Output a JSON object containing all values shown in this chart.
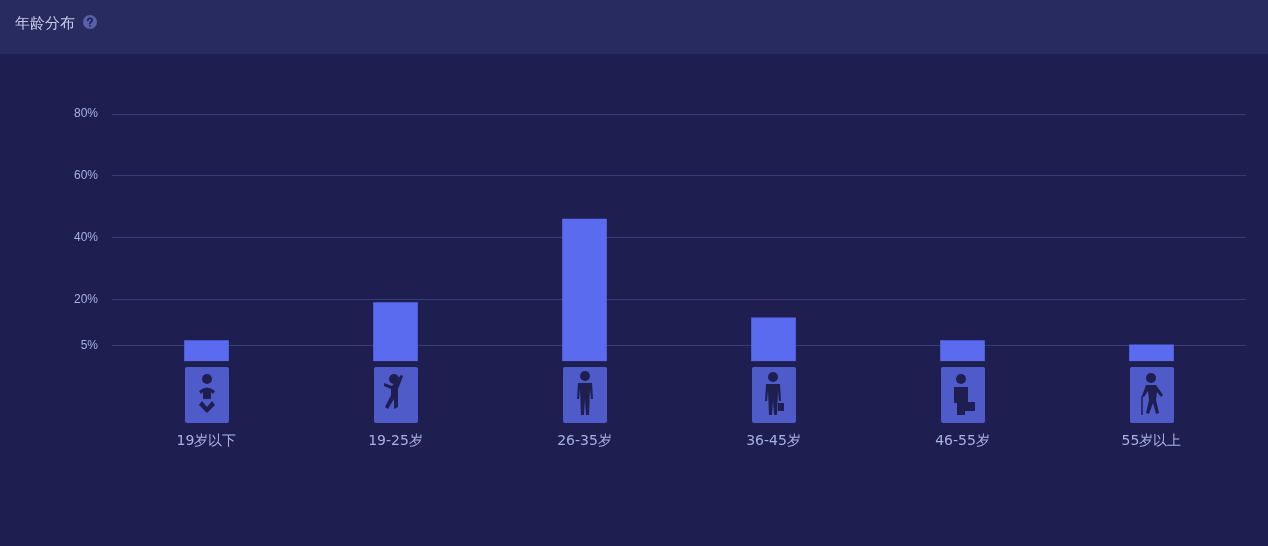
{
  "chart_data": {
    "type": "bar",
    "title": "年龄分布",
    "categories": [
      "19岁以下",
      "19-25岁",
      "26-35岁",
      "36-45岁",
      "46-55岁",
      "55岁以上"
    ],
    "values": [
      6.7,
      19,
      46,
      14,
      6.7,
      5.3
    ],
    "color": "#5b6bef",
    "ylim": [
      0,
      80
    ],
    "yticks": [
      {
        "value": 5,
        "label": "5%"
      },
      {
        "value": 20,
        "label": "20%"
      },
      {
        "value": 40,
        "label": "40%"
      },
      {
        "value": 60,
        "label": "60%"
      },
      {
        "value": 80,
        "label": "80%"
      }
    ],
    "grid": "y",
    "legend": false
  }
}
